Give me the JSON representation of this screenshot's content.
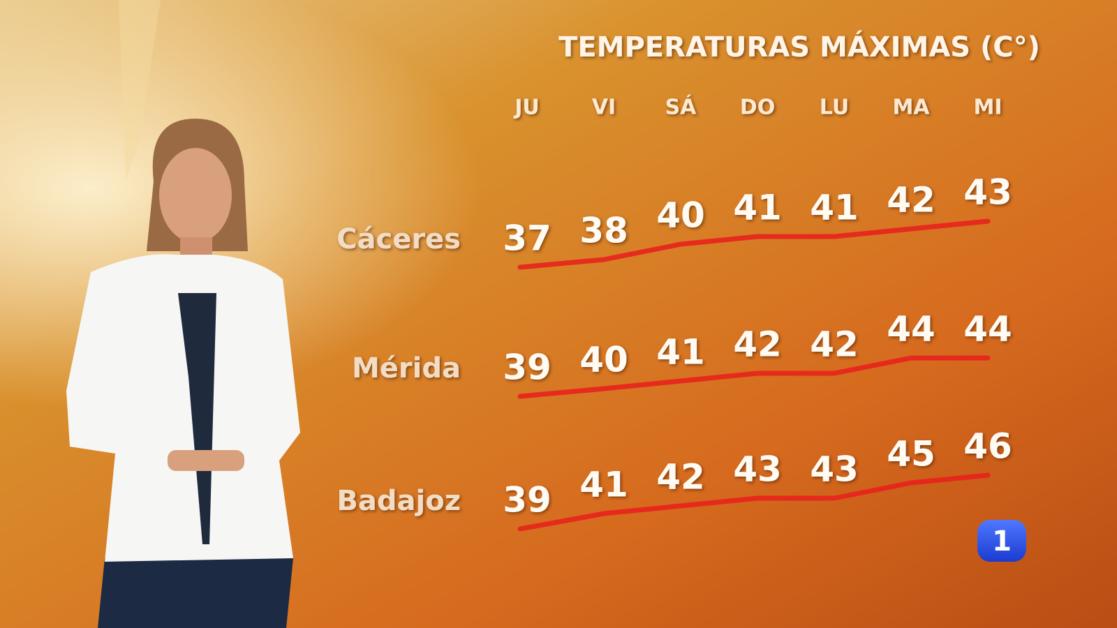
{
  "forecast": {
    "title": "TEMPERATURAS MÁXIMAS (C°)",
    "days": [
      "JU",
      "VI",
      "SÁ",
      "DO",
      "LU",
      "MA",
      "MI"
    ],
    "rows": [
      {
        "city": "Cáceres",
        "values": [
          37,
          38,
          40,
          41,
          41,
          42,
          43
        ]
      },
      {
        "city": "Mérida",
        "values": [
          39,
          40,
          41,
          42,
          42,
          44,
          44
        ]
      },
      {
        "city": "Badajoz",
        "values": [
          39,
          41,
          42,
          43,
          43,
          45,
          46
        ]
      }
    ]
  },
  "channel_logo": "1"
}
